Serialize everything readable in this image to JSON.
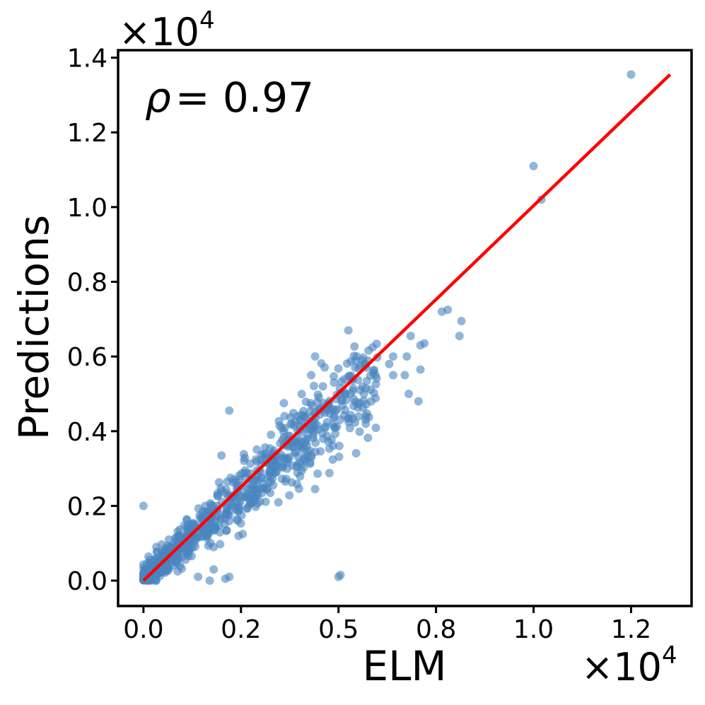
{
  "chart_data": {
    "type": "scatter",
    "xlabel": "ELM",
    "ylabel": "Predictions",
    "x_offset_text": "×10",
    "x_offset_exp": "4",
    "y_offset_text": "×10",
    "y_offset_exp": "4",
    "annotation_symbol": "ρ",
    "annotation_value": "= 0.97",
    "xlim": [
      -0.065,
      1.405
    ],
    "ylim": [
      -0.068,
      1.42
    ],
    "xticks": [
      0.0,
      0.25,
      0.5,
      0.75,
      1.0,
      1.25
    ],
    "xtick_labels": [
      "0.0",
      "0.2",
      "0.5",
      "0.8",
      "1.0",
      "1.2"
    ],
    "yticks": [
      0.0,
      0.2,
      0.4,
      0.6,
      0.8,
      1.0,
      1.2,
      1.4
    ],
    "ytick_labels": [
      "0.0",
      "0.2",
      "0.4",
      "0.6",
      "0.8",
      "1.0",
      "1.2",
      "1.4"
    ],
    "grid": false,
    "point_color": "#4a86c0",
    "line_color": "#ff0000",
    "fit_line": {
      "x": [
        0.0,
        1.35
      ],
      "y": [
        0.0,
        1.355
      ]
    },
    "notable_points": [
      {
        "x": 1.25,
        "y": 1.355
      },
      {
        "x": 1.0,
        "y": 1.11
      },
      {
        "x": 1.02,
        "y": 1.02
      },
      {
        "x": 0.815,
        "y": 0.695
      },
      {
        "x": 0.81,
        "y": 0.655
      },
      {
        "x": 0.78,
        "y": 0.725
      },
      {
        "x": 0.765,
        "y": 0.72
      },
      {
        "x": 0.685,
        "y": 0.655
      },
      {
        "x": 0.71,
        "y": 0.63
      },
      {
        "x": 0.72,
        "y": 0.635
      },
      {
        "x": 0.675,
        "y": 0.6
      },
      {
        "x": 0.64,
        "y": 0.6
      },
      {
        "x": 0.63,
        "y": 0.58
      },
      {
        "x": 0.71,
        "y": 0.565
      },
      {
        "x": 0.64,
        "y": 0.55
      },
      {
        "x": 0.67,
        "y": 0.55
      },
      {
        "x": 0.68,
        "y": 0.5
      },
      {
        "x": 0.705,
        "y": 0.48
      },
      {
        "x": 0.56,
        "y": 0.59
      },
      {
        "x": 0.57,
        "y": 0.44
      },
      {
        "x": 0.57,
        "y": 0.42
      },
      {
        "x": 0.5,
        "y": 0.01
      },
      {
        "x": 0.505,
        "y": 0.015
      },
      {
        "x": 0.44,
        "y": 0.245
      },
      {
        "x": 0.0,
        "y": 0.2
      },
      {
        "x": 0.22,
        "y": 0.455
      },
      {
        "x": 0.2,
        "y": 0.335
      },
      {
        "x": 0.21,
        "y": 0.005
      },
      {
        "x": 0.13,
        "y": 0.1
      },
      {
        "x": 0.17,
        "y": 0.0
      },
      {
        "x": 0.14,
        "y": 0.01
      },
      {
        "x": 0.22,
        "y": 0.01
      },
      {
        "x": 0.18,
        "y": 0.03
      },
      {
        "x": 0.36,
        "y": 0.475
      },
      {
        "x": 0.43,
        "y": 0.55
      },
      {
        "x": 0.46,
        "y": 0.52
      },
      {
        "x": 0.44,
        "y": 0.6
      }
    ],
    "cluster": {
      "n": 850,
      "x_range": [
        0.0,
        0.6
      ],
      "slope": 0.93,
      "spread": 0.045
    }
  }
}
